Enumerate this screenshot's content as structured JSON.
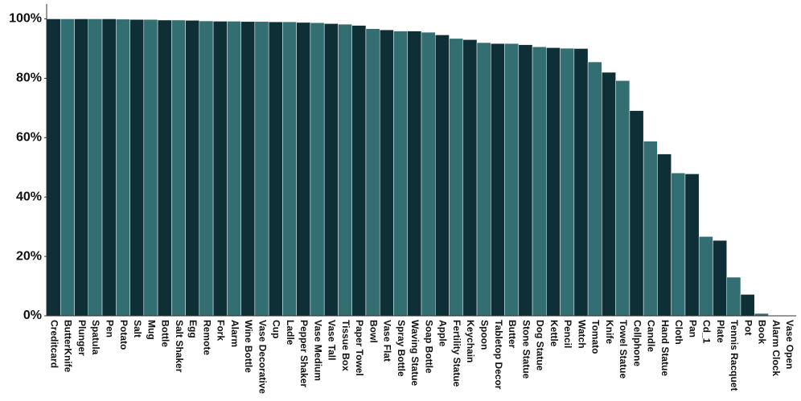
{
  "chart_data": {
    "type": "bar",
    "categories": [
      "Creditcard",
      "ButterKnife",
      "Plunger",
      "Spatula",
      "Pen",
      "Potato",
      "Salt",
      "Mug",
      "Bottle",
      "Salt Shaker",
      "Egg",
      "Remote",
      "Fork",
      "Alarm",
      "Wine Bottle",
      "Vase Decorative",
      "Cup",
      "Ladle",
      "Pepper Shaker",
      "Vase Medium",
      "Vase Tall",
      "Tissue Box",
      "Paper Towel",
      "Bowl",
      "Vase Flat",
      "Spray Bottle",
      "Waving Statue",
      "Soap Bottle",
      "Apple",
      "Fertility Statue",
      "Keychain",
      "Spoon",
      "Tabletop Decor",
      "Butter",
      "Stone Statue",
      "Dog Statue",
      "Kettle",
      "Pencil",
      "Watch",
      "Tomato",
      "Knife",
      "Towel Statue",
      "Cellphone",
      "Candle",
      "Hand Statue",
      "Cloth",
      "Pan",
      "Cd_1",
      "Plate",
      "Tennis Racquet",
      "Pot",
      "Book",
      "Alarm Clock",
      "Vase Open"
    ],
    "values": [
      100,
      100,
      100,
      100,
      100,
      99.9,
      99.8,
      99.8,
      99.6,
      99.6,
      99.5,
      99.3,
      99.2,
      99.2,
      99.1,
      99.1,
      99.0,
      99.0,
      98.8,
      98.7,
      98.4,
      98.2,
      97.8,
      96.7,
      96.3,
      95.9,
      95.9,
      95.5,
      94.6,
      93.4,
      93.0,
      92.0,
      91.7,
      91.7,
      91.3,
      90.6,
      90.3,
      90.1,
      90.0,
      85.5,
      82.0,
      79.2,
      69.1,
      58.8,
      54.5,
      48.1,
      47.8,
      26.7,
      25.4,
      13.0,
      7.2,
      0.8,
      0.2,
      0.1
    ],
    "colors": [
      "#0d2f35",
      "#336e73"
    ],
    "ylim": [
      0,
      105
    ],
    "yticks": [
      {
        "value": 0,
        "label": "0%"
      },
      {
        "value": 20,
        "label": "20%"
      },
      {
        "value": 40,
        "label": "40%"
      },
      {
        "value": 60,
        "label": "60%"
      },
      {
        "value": 80,
        "label": "80%"
      },
      {
        "value": 100,
        "label": "100%"
      }
    ],
    "grid": false
  }
}
